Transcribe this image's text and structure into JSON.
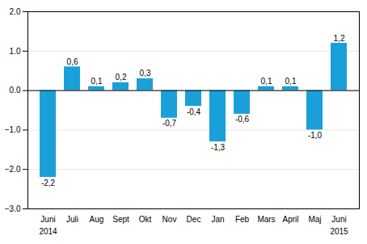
{
  "chart_data": {
    "type": "bar",
    "categories": [
      "Juni",
      "Juli",
      "Aug",
      "Sept",
      "Okt",
      "Nov",
      "Dec",
      "Jan",
      "Feb",
      "Mars",
      "April",
      "Maj",
      "Juni"
    ],
    "values": [
      -2.2,
      0.6,
      0.1,
      0.2,
      0.3,
      -0.7,
      -0.4,
      -1.3,
      -0.6,
      0.1,
      0.1,
      -1.0,
      1.2
    ],
    "value_labels": [
      "-2,2",
      "0,6",
      "0,1",
      "0,2",
      "0,3",
      "-0,7",
      "-0,4",
      "-1,3",
      "-0,6",
      "0,1",
      "0,1",
      "-1,0",
      "1,2"
    ],
    "data_labels": true,
    "color": "#1aa0d8",
    "ylim": [
      -3,
      2
    ],
    "yticks": [
      -3,
      -2,
      -1,
      0,
      1,
      2
    ],
    "grid": true,
    "annotations": [
      "2014",
      "2015"
    ]
  }
}
